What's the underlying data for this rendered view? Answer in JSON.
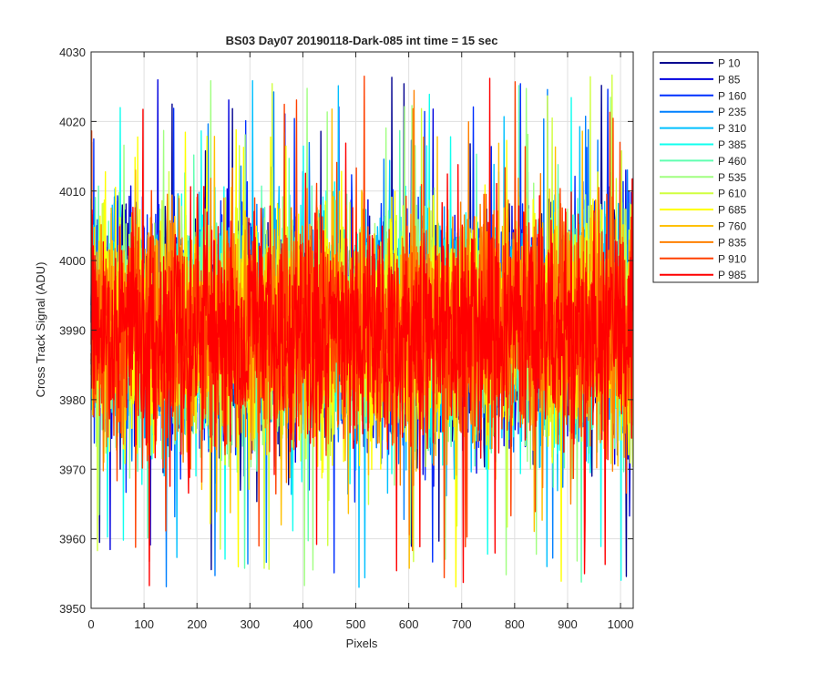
{
  "chart_data": {
    "type": "line",
    "title": "BS03 Day07 20190118-Dark-085 int time = 15 sec",
    "xlabel": "Pixels",
    "ylabel": "Cross Track Signal (ADU)",
    "xlim": [
      0,
      1024
    ],
    "ylim": [
      3950,
      4030
    ],
    "xticks": [
      0,
      100,
      200,
      300,
      400,
      500,
      600,
      700,
      800,
      900,
      1000
    ],
    "yticks": [
      3950,
      3960,
      3970,
      3980,
      3990,
      4000,
      4010,
      4020,
      4030
    ],
    "grid": true,
    "legend_position": "outside-top-right",
    "signal_summary": {
      "pixel_count": 1024,
      "mean": 3990,
      "typical_min": 3964,
      "typical_max": 4016,
      "observed_min": 3952,
      "observed_max": 4027
    },
    "series": [
      {
        "name": "P 10",
        "color": "#00008f"
      },
      {
        "name": "P 85",
        "color": "#0000df"
      },
      {
        "name": "P 160",
        "color": "#0030ff"
      },
      {
        "name": "P 235",
        "color": "#0080ff"
      },
      {
        "name": "P 310",
        "color": "#00c0ff"
      },
      {
        "name": "P 385",
        "color": "#10ffef"
      },
      {
        "name": "P 460",
        "color": "#60ffb0"
      },
      {
        "name": "P 535",
        "color": "#a0ff80"
      },
      {
        "name": "P 610",
        "color": "#d0ff40"
      },
      {
        "name": "P 685",
        "color": "#ffff00"
      },
      {
        "name": "P 760",
        "color": "#ffc000"
      },
      {
        "name": "P 835",
        "color": "#ff8000"
      },
      {
        "name": "P 910",
        "color": "#ff4000"
      },
      {
        "name": "P 985",
        "color": "#ff0000"
      }
    ]
  }
}
